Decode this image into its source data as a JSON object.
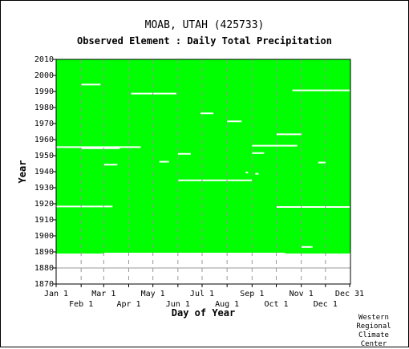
{
  "title": {
    "station": "MOAB, UTAH   (425733)",
    "subtitle": "Observed Element : Daily Total Precipitation"
  },
  "credit": [
    "Western",
    "Regional",
    "Climate",
    "Center"
  ],
  "colors": {
    "observed": "#00ff00",
    "missing": "#ffffff",
    "grid": "#999999"
  },
  "chart_data": {
    "type": "heatmap",
    "xlabel": "Day of Year",
    "ylabel": "Year",
    "xlim": [
      1,
      366
    ],
    "ylim": [
      1870,
      2010
    ],
    "x_ticks_top_row": [
      {
        "label": "Jan 1",
        "day": 1
      },
      {
        "label": "Mar 1",
        "day": 60
      },
      {
        "label": "May 1",
        "day": 121
      },
      {
        "label": "Jul 1",
        "day": 182
      },
      {
        "label": "Sep 1",
        "day": 244
      },
      {
        "label": "Nov 1",
        "day": 305
      },
      {
        "label": "Dec 31",
        "day": 365
      }
    ],
    "x_ticks_bottom_row": [
      {
        "label": "Feb 1",
        "day": 32
      },
      {
        "label": "Apr 1",
        "day": 91
      },
      {
        "label": "Jun 1",
        "day": 152
      },
      {
        "label": "Aug 1",
        "day": 213
      },
      {
        "label": "Oct 1",
        "day": 274
      },
      {
        "label": "Dec 1",
        "day": 335
      }
    ],
    "y_ticks": [
      1870,
      1880,
      1890,
      1900,
      1910,
      1920,
      1930,
      1940,
      1950,
      1960,
      1970,
      1980,
      1990,
      2000,
      2010
    ],
    "observed_period": {
      "start_year": 1889.5,
      "end_year": 2010
    },
    "partial_years": [
      {
        "year": 1889,
        "observed_from_day": 1,
        "observed_to_day": 60
      },
      {
        "year": 1889,
        "observed_from_day": 285,
        "observed_to_day": 365
      }
    ],
    "missing_segments": [
      {
        "year": 1994.3,
        "from_day": 32,
        "to_day": 56
      },
      {
        "year": 1990.7,
        "from_day": 294,
        "to_day": 365
      },
      {
        "year": 1988.7,
        "from_day": 94,
        "to_day": 150
      },
      {
        "year": 1976.4,
        "from_day": 180,
        "to_day": 196
      },
      {
        "year": 1971.4,
        "from_day": 213,
        "to_day": 231
      },
      {
        "year": 1963.3,
        "from_day": 274,
        "to_day": 306
      },
      {
        "year": 1956.2,
        "from_day": 244,
        "to_day": 300
      },
      {
        "year": 1955.3,
        "from_day": 1,
        "to_day": 106
      },
      {
        "year": 1954.6,
        "from_day": 32,
        "to_day": 80
      },
      {
        "year": 1951.6,
        "from_day": 244,
        "to_day": 259
      },
      {
        "year": 1951.1,
        "from_day": 152,
        "to_day": 168
      },
      {
        "year": 1946.2,
        "from_day": 129,
        "to_day": 141
      },
      {
        "year": 1945.7,
        "from_day": 326,
        "to_day": 335
      },
      {
        "year": 1944.4,
        "from_day": 60,
        "to_day": 77
      },
      {
        "year": 1939.5,
        "from_day": 236,
        "to_day": 239
      },
      {
        "year": 1938.7,
        "from_day": 248,
        "to_day": 252
      },
      {
        "year": 1934.6,
        "from_day": 152,
        "to_day": 244
      },
      {
        "year": 1918.3,
        "from_day": 1,
        "to_day": 71
      },
      {
        "year": 1918.0,
        "from_day": 274,
        "to_day": 365
      },
      {
        "year": 1893.1,
        "from_day": 305,
        "to_day": 319
      }
    ]
  }
}
